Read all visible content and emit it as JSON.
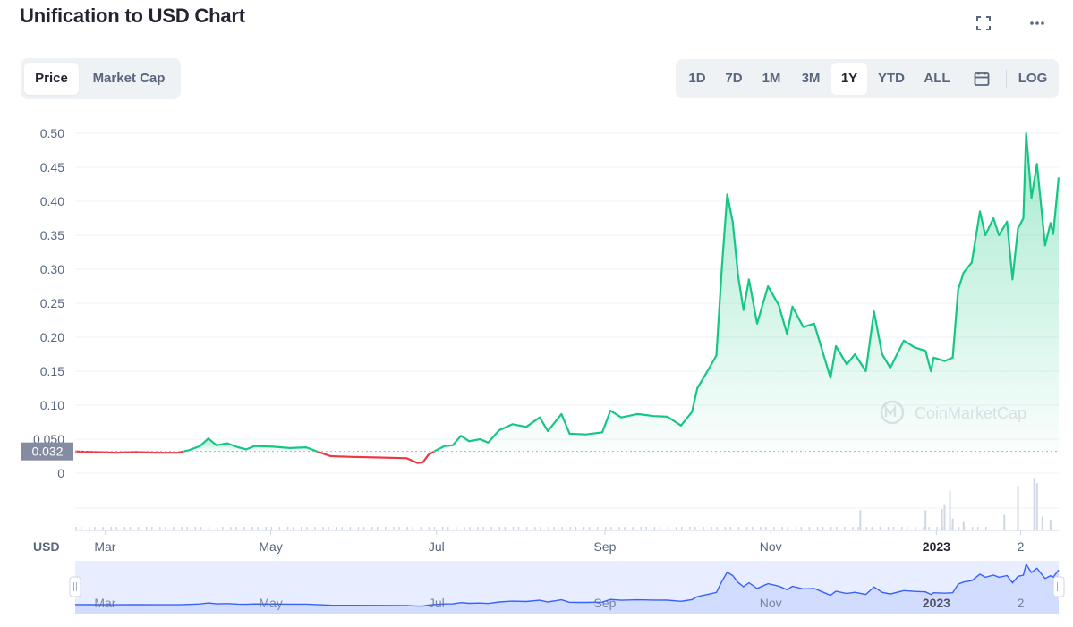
{
  "header": {
    "title": "Unification to USD Chart"
  },
  "icons": {
    "fullscreen": "fullscreen-icon",
    "more": "more-icon",
    "calendar": "calendar-icon",
    "watermark": "coinmarketcap-logo-icon"
  },
  "tabs": [
    {
      "label": "Price",
      "active": true
    },
    {
      "label": "Market Cap",
      "active": false
    }
  ],
  "ranges": [
    {
      "label": "1D",
      "active": false
    },
    {
      "label": "7D",
      "active": false
    },
    {
      "label": "1M",
      "active": false
    },
    {
      "label": "3M",
      "active": false
    },
    {
      "label": "1Y",
      "active": true
    },
    {
      "label": "YTD",
      "active": false
    },
    {
      "label": "ALL",
      "active": false
    }
  ],
  "log_label": "LOG",
  "currency_label": "USD",
  "watermark_text": "CoinMarketCap",
  "colors": {
    "up": "#16c784",
    "down": "#ea3943",
    "navigator": "#3861fb",
    "text": "#222531",
    "muted": "#58667e"
  },
  "chart_data": {
    "type": "line",
    "title": "Unification to USD Chart",
    "xlabel": "",
    "ylabel": "",
    "ylim": [
      0,
      0.5
    ],
    "yticks": [
      "0.50",
      "0.45",
      "0.40",
      "0.35",
      "0.30",
      "0.25",
      "0.20",
      "0.15",
      "0.10",
      "0.050",
      "0"
    ],
    "xticks": [
      {
        "label": "Mar",
        "date": "2022-03-01",
        "bold": false
      },
      {
        "label": "May",
        "date": "2022-05-01",
        "bold": false
      },
      {
        "label": "Jul",
        "date": "2022-07-01",
        "bold": false
      },
      {
        "label": "Sep",
        "date": "2022-09-01",
        "bold": false
      },
      {
        "label": "Nov",
        "date": "2022-11-01",
        "bold": false
      },
      {
        "label": "2023",
        "date": "2023-01-01",
        "bold": true
      },
      {
        "label": "2",
        "date": "2023-02-01",
        "bold": false
      }
    ],
    "x_range": [
      "2022-02-18",
      "2023-02-15"
    ],
    "reference_price": 0.032,
    "reference_label": "0.032",
    "grid": true,
    "series": [
      {
        "points": [
          [
            "2022-02-18",
            0.032
          ],
          [
            "2022-02-25",
            0.031
          ],
          [
            "2022-03-05",
            0.03
          ],
          [
            "2022-03-12",
            0.031
          ],
          [
            "2022-03-20",
            0.03
          ],
          [
            "2022-03-28",
            0.03
          ],
          [
            "2022-04-01",
            0.034
          ],
          [
            "2022-04-05",
            0.04
          ],
          [
            "2022-04-08",
            0.051
          ],
          [
            "2022-04-11",
            0.041
          ],
          [
            "2022-04-15",
            0.044
          ],
          [
            "2022-04-19",
            0.038
          ],
          [
            "2022-04-22",
            0.035
          ],
          [
            "2022-04-25",
            0.04
          ],
          [
            "2022-05-02",
            0.039
          ],
          [
            "2022-05-08",
            0.037
          ],
          [
            "2022-05-14",
            0.038
          ],
          [
            "2022-05-18",
            0.032
          ],
          [
            "2022-05-23",
            0.025
          ],
          [
            "2022-05-31",
            0.024
          ],
          [
            "2022-06-10",
            0.023
          ],
          [
            "2022-06-20",
            0.022
          ],
          [
            "2022-06-24",
            0.015
          ],
          [
            "2022-06-26",
            0.016
          ],
          [
            "2022-06-28",
            0.027
          ],
          [
            "2022-07-01",
            0.034
          ],
          [
            "2022-07-04",
            0.04
          ],
          [
            "2022-07-07",
            0.041
          ],
          [
            "2022-07-10",
            0.055
          ],
          [
            "2022-07-13",
            0.047
          ],
          [
            "2022-07-17",
            0.05
          ],
          [
            "2022-07-20",
            0.045
          ],
          [
            "2022-07-24",
            0.063
          ],
          [
            "2022-07-29",
            0.072
          ],
          [
            "2022-08-03",
            0.068
          ],
          [
            "2022-08-08",
            0.082
          ],
          [
            "2022-08-11",
            0.062
          ],
          [
            "2022-08-16",
            0.087
          ],
          [
            "2022-08-19",
            0.058
          ],
          [
            "2022-08-25",
            0.057
          ],
          [
            "2022-08-31",
            0.06
          ],
          [
            "2022-09-03",
            0.092
          ],
          [
            "2022-09-07",
            0.082
          ],
          [
            "2022-09-13",
            0.087
          ],
          [
            "2022-09-19",
            0.084
          ],
          [
            "2022-09-24",
            0.083
          ],
          [
            "2022-09-29",
            0.07
          ],
          [
            "2022-10-03",
            0.09
          ],
          [
            "2022-10-05",
            0.125
          ],
          [
            "2022-10-08",
            0.145
          ],
          [
            "2022-10-12",
            0.173
          ],
          [
            "2022-10-14",
            0.3
          ],
          [
            "2022-10-16",
            0.41
          ],
          [
            "2022-10-18",
            0.37
          ],
          [
            "2022-10-20",
            0.29
          ],
          [
            "2022-10-22",
            0.24
          ],
          [
            "2022-10-24",
            0.285
          ],
          [
            "2022-10-27",
            0.22
          ],
          [
            "2022-10-31",
            0.275
          ],
          [
            "2022-11-04",
            0.247
          ],
          [
            "2022-11-07",
            0.205
          ],
          [
            "2022-11-09",
            0.245
          ],
          [
            "2022-11-13",
            0.215
          ],
          [
            "2022-11-17",
            0.22
          ],
          [
            "2022-11-20",
            0.18
          ],
          [
            "2022-11-23",
            0.14
          ],
          [
            "2022-11-25",
            0.187
          ],
          [
            "2022-11-29",
            0.16
          ],
          [
            "2022-12-02",
            0.175
          ],
          [
            "2022-12-06",
            0.15
          ],
          [
            "2022-12-09",
            0.238
          ],
          [
            "2022-12-12",
            0.175
          ],
          [
            "2022-12-15",
            0.155
          ],
          [
            "2022-12-20",
            0.195
          ],
          [
            "2022-12-24",
            0.185
          ],
          [
            "2022-12-28",
            0.18
          ],
          [
            "2022-12-30",
            0.15
          ],
          [
            "2022-12-31",
            0.17
          ],
          [
            "2023-01-04",
            0.165
          ],
          [
            "2023-01-07",
            0.17
          ],
          [
            "2023-01-09",
            0.27
          ],
          [
            "2023-01-11",
            0.295
          ],
          [
            "2023-01-14",
            0.31
          ],
          [
            "2023-01-17",
            0.385
          ],
          [
            "2023-01-19",
            0.35
          ],
          [
            "2023-01-22",
            0.375
          ],
          [
            "2023-01-24",
            0.35
          ],
          [
            "2023-01-27",
            0.37
          ],
          [
            "2023-01-29",
            0.285
          ],
          [
            "2023-01-31",
            0.36
          ],
          [
            "2023-02-02",
            0.375
          ],
          [
            "2023-02-03",
            0.5
          ],
          [
            "2023-02-05",
            0.405
          ],
          [
            "2023-02-07",
            0.455
          ],
          [
            "2023-02-10",
            0.335
          ],
          [
            "2023-02-12",
            0.368
          ],
          [
            "2023-02-13",
            0.352
          ],
          [
            "2023-02-15",
            0.435
          ]
        ]
      }
    ],
    "volume": [
      [
        "2022-12-04",
        0.3
      ],
      [
        "2022-12-28",
        0.3
      ],
      [
        "2023-01-03",
        0.32
      ],
      [
        "2023-01-04",
        0.38
      ],
      [
        "2023-01-06",
        0.6
      ],
      [
        "2023-01-07",
        0.17
      ],
      [
        "2023-01-11",
        0.12
      ],
      [
        "2023-01-26",
        0.23
      ],
      [
        "2023-01-31",
        0.68
      ],
      [
        "2023-02-06",
        0.8
      ],
      [
        "2023-02-07",
        0.72
      ],
      [
        "2023-02-09",
        0.2
      ],
      [
        "2023-02-12",
        0.15
      ]
    ]
  }
}
